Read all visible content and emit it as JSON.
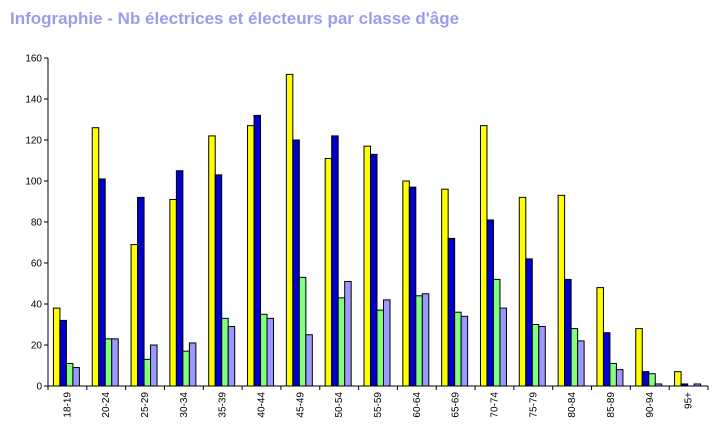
{
  "page_title": "Infographie - Nb électrices et électeurs par classe d'âge",
  "chart_data": {
    "type": "bar",
    "title": "Infographie - Nb électrices et électeurs par classe d'âge",
    "xlabel": "",
    "ylabel": "",
    "ylim": [
      0,
      160
    ],
    "yticks": [
      0,
      20,
      40,
      60,
      80,
      100,
      120,
      140,
      160
    ],
    "grid": false,
    "legend": "none",
    "categories": [
      "18-19",
      "20-24",
      "25-29",
      "30-34",
      "35-39",
      "40-44",
      "45-49",
      "50-54",
      "55-59",
      "60-64",
      "65-69",
      "70-74",
      "75-79",
      "80-84",
      "85-89",
      "90-94",
      "95+"
    ],
    "series": [
      {
        "color": "#ffff00",
        "values": [
          38,
          126,
          69,
          91,
          122,
          127,
          152,
          111,
          117,
          100,
          96,
          127,
          92,
          93,
          48,
          28,
          7
        ]
      },
      {
        "color": "#0000cc",
        "values": [
          32,
          101,
          92,
          105,
          103,
          132,
          120,
          122,
          113,
          97,
          72,
          81,
          62,
          52,
          26,
          7,
          1
        ]
      },
      {
        "color": "#80ff80",
        "values": [
          11,
          23,
          13,
          17,
          33,
          35,
          53,
          43,
          37,
          44,
          36,
          52,
          30,
          28,
          11,
          6,
          0
        ]
      },
      {
        "color": "#9999ff",
        "values": [
          9,
          23,
          20,
          21,
          29,
          33,
          25,
          51,
          42,
          45,
          34,
          38,
          29,
          22,
          8,
          1,
          1
        ]
      }
    ]
  }
}
